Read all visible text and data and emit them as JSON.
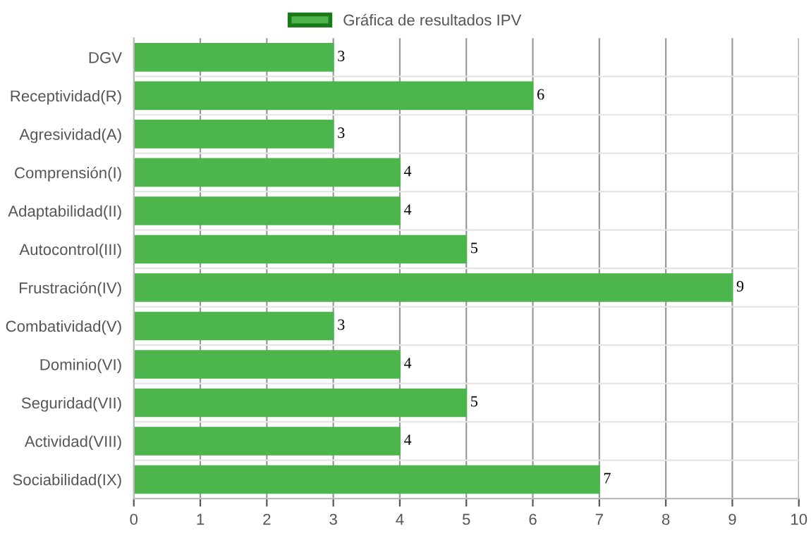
{
  "chart_data": {
    "type": "bar",
    "orientation": "horizontal",
    "categories": [
      "DGV",
      "Receptividad(R)",
      "Agresividad(A)",
      "Comprensión(I)",
      "Adaptabilidad(II)",
      "Autocontrol(III)",
      "Frustración(IV)",
      "Combatividad(V)",
      "Dominio(VI)",
      "Seguridad(VII)",
      "Actividad(VIII)",
      "Sociabilidad(IX)"
    ],
    "series": [
      {
        "name": "Gráfica de resultados IPV",
        "color": "#4cb54c",
        "values": [
          3,
          6,
          3,
          4,
          4,
          5,
          9,
          3,
          4,
          5,
          4,
          7
        ]
      }
    ],
    "xlim": [
      0,
      10
    ],
    "xticks": [
      0,
      1,
      2,
      3,
      4,
      5,
      6,
      7,
      8,
      9,
      10
    ],
    "grid": true,
    "legend": "top",
    "data_labels": true
  }
}
